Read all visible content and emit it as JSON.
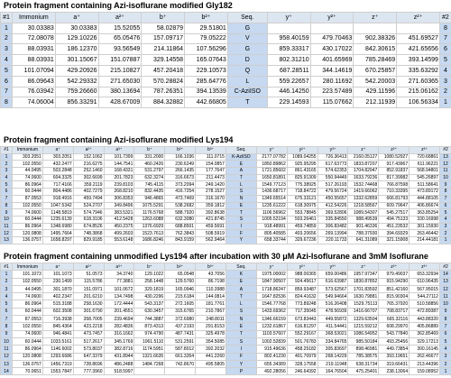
{
  "tables": [
    {
      "title": "Protein fragment containing Azi-isoflurane modified Gly182",
      "headers": [
        "#1",
        "Immonium",
        "a⁺",
        "a²⁺",
        "b⁺",
        "b²⁺",
        "Seq.",
        "y⁺",
        "y²⁺",
        "z⁺",
        "z²⁺",
        "#2"
      ],
      "rows": [
        [
          "1",
          "30.03383",
          "30.03383",
          "15.52055",
          "58.02879",
          "29.51801",
          "G",
          "",
          "",
          "",
          "",
          "8"
        ],
        [
          "2",
          "72.08078",
          "129.10226",
          "65.05476",
          "157.09717",
          "79.05222",
          "V",
          "958.40159",
          "479.70463",
          "902.38326",
          "451.69527",
          "7"
        ],
        [
          "3",
          "88.03931",
          "186.12370",
          "93.56549",
          "214.11864",
          "107.56296",
          "G",
          "859.33317",
          "430.17022",
          "842.30615",
          "421.65656",
          "6"
        ],
        [
          "4",
          "88.03931",
          "301.15067",
          "151.07887",
          "329.14558",
          "165.07643",
          "D",
          "802.31210",
          "401.65969",
          "785.28469",
          "393.14599",
          "5"
        ],
        [
          "5",
          "101.07094",
          "429.20926",
          "215.10827",
          "457.20418",
          "229.10573",
          "Q",
          "687.28511",
          "344.14619",
          "670.25857",
          "335.63292",
          "4"
        ],
        [
          "6",
          "86.09643",
          "542.29332",
          "271.65030",
          "570.28824",
          "285.64776",
          "L",
          "559.22657",
          "280.11692",
          "542.20003",
          "271.60365",
          "3"
        ],
        [
          "7",
          "76.03942",
          "759.26660",
          "380.13694",
          "787.26351",
          "394.13539",
          "C-AziISO",
          "446.14250",
          "223.57489",
          "429.11596",
          "215.06162",
          "2"
        ],
        [
          "8",
          "74.06004",
          "856.33291",
          "428.67009",
          "884.32882",
          "442.66805",
          "T",
          "229.14593",
          "115.07662",
          "212.11939",
          "106.56334",
          "1"
        ]
      ]
    },
    {
      "title": "Protein fragment containing Azi-isoflurane modified Lys194",
      "headers": [
        "#1",
        "Immonium",
        "a⁺",
        "a²⁺",
        "a³⁺",
        "b⁺",
        "b²⁺",
        "b³⁺",
        "Seq.",
        "y⁺",
        "y²⁺",
        "y³⁺",
        "z⁺",
        "z²⁺",
        "z³⁺",
        "#2"
      ],
      "rows": [
        [
          "1",
          "303.2051",
          "303.2051",
          "152.1062",
          "101.7399",
          "331.2000",
          "166.1036",
          "111.0715",
          "K-AziISO",
          "2177.07782",
          "1089.04255",
          "726.36413",
          "2160.05127",
          "1080.52927",
          "720.68861",
          "13"
        ],
        [
          "2",
          "102.0550",
          "432.2477",
          "216.6275",
          "144.7541",
          "460.2426",
          "230.6249",
          "154.0857",
          "E",
          "1850.89862",
          "925.95295",
          "617.63773",
          "1833.87207",
          "917.43967",
          "611.96221",
          "12"
        ],
        [
          "3",
          "44.0495",
          "503.2848",
          "252.1460",
          "168.4331",
          "531.2797",
          "266.1435",
          "177.7647",
          "A",
          "1721.85602",
          "861.43165",
          "574.62353",
          "1704.82947",
          "852.91837",
          "568.94801",
          "11"
        ],
        [
          "4",
          "74.0600",
          "604.3325",
          "302.6699",
          "201.7823",
          "632.3274",
          "316.6673",
          "211.4473",
          "T",
          "1650.81891",
          "825.91309",
          "550.94449",
          "1633.79236",
          "817.39982",
          "545.26897",
          "10"
        ],
        [
          "5",
          "86.0964",
          "717.4166",
          "359.2119",
          "239.8103",
          "745.4115",
          "373.2094",
          "249.1420",
          "L",
          "1549.77123",
          "775.38925",
          "517.26193",
          "1532.74468",
          "766.87598",
          "511.58641",
          "9"
        ],
        [
          "6",
          "60.0444",
          "804.4486",
          "402.7279",
          "268.8210",
          "832.4435",
          "416.7254",
          "278.1527",
          "S",
          "1436.68717",
          "718.84722",
          "479.56724",
          "1419.66062",
          "710.33395",
          "473.89172",
          "8"
        ],
        [
          "7",
          "87.0553",
          "918.4916",
          "459.7494",
          "306.8353",
          "946.4865",
          "473.7469",
          "316.1670",
          "N",
          "1349.65514",
          "675.33121",
          "450.55657",
          "1332.62859",
          "666.81793",
          "444.88105",
          "7"
        ],
        [
          "8",
          "102.0550",
          "1047.5342",
          "524.2707",
          "349.8496",
          "1075.5291",
          "538.2682",
          "359.1812",
          "E",
          "1235.61222",
          "618.30975",
          "412.54226",
          "1218.58567",
          "609.79647",
          "406.86674",
          "6"
        ],
        [
          "9",
          "74.0600",
          "1148.5819",
          "574.7946",
          "383.5321",
          "1176.5768",
          "588.7920",
          "392.8638",
          "T",
          "1106.56962",
          "553.78845",
          "369.52806",
          "1089.54307",
          "545.27517",
          "363.85254",
          "5"
        ],
        [
          "10",
          "60.0444",
          "1235.6139",
          "618.3106",
          "412.5428",
          "1263.6088",
          "632.3080",
          "421.8745",
          "S",
          "1005.52194",
          "503.26461",
          "335.84550",
          "988.49539",
          "494.75133",
          "330.16998",
          "4"
        ],
        [
          "11",
          "86.0964",
          "1348.6980",
          "674.8526",
          "450.2375",
          "1376.6929",
          "688.8501",
          "459.5691",
          "I",
          "918.48991",
          "459.74859",
          "306.83482",
          "901.46336",
          "451.23532",
          "301.15930",
          "3"
        ],
        [
          "12",
          "120.0808",
          "1495.7664",
          "748.3868",
          "499.2603",
          "1523.7613",
          "762.3843",
          "508.5919",
          "F",
          "805.40585",
          "403.20656",
          "269.13994",
          "788.37930",
          "394.69329",
          "263.46442",
          "2"
        ],
        [
          "13",
          "136.0757",
          "1658.8297",
          "829.9185",
          "553.6148",
          "1686.8246",
          "843.9159",
          "562.9464",
          "Y",
          "658.33744",
          "329.67236",
          "220.11733",
          "641.31089",
          "321.15908",
          "214.44181",
          "1"
        ]
      ]
    },
    {
      "title": "Protein fragment containing unmodified Lys194 after incubation with 30 μM Azi-Isoflurane and 3mM Isoflurane",
      "headers": [
        "#1",
        "Immonium",
        "a⁺",
        "a²⁺",
        "a³⁺",
        "b⁺",
        "b²⁺",
        "b³⁺",
        "Seq.",
        "y⁺",
        "y²⁺",
        "y³⁺",
        "z⁺",
        "z²⁺",
        "z³⁺",
        "#2"
      ],
      "rows": [
        [
          "1",
          "101.1073",
          "101.1073",
          "51.0573",
          "34.3740",
          "129.1022",
          "65.0548",
          "43.7056",
          "K",
          "1975.00002",
          "988.00365",
          "659.00486",
          "1957.97347",
          "979.49037",
          "653.32934",
          "14"
        ],
        [
          "2",
          "102.0550",
          "230.1499",
          "115.5786",
          "77.3881",
          "258.1448",
          "129.5760",
          "86.7198",
          "E",
          "1847.90507",
          "924.45617",
          "616.63987",
          "1830.87852",
          "915.94290",
          "610.96435",
          "13"
        ],
        [
          "3",
          "44.0495",
          "301.1870",
          "151.0971",
          "101.0672",
          "329.1819",
          "165.0946",
          "110.3988",
          "A",
          "1718.86247",
          "859.93487",
          "573.62567",
          "1701.83592",
          "851.42160",
          "567.95015",
          "12"
        ],
        [
          "4",
          "74.0600",
          "402.2347",
          "201.6210",
          "134.7498",
          "430.2296",
          "215.6184",
          "144.0814",
          "T",
          "1647.82536",
          "824.41632",
          "549.94664",
          "1630.79881",
          "815.90304",
          "544.27112",
          "11"
        ],
        [
          "5",
          "86.0964",
          "515.3188",
          "258.1630",
          "172.4444",
          "543.3137",
          "272.1605",
          "181.7761",
          "L",
          "1546.77768",
          "773.89248",
          "516.26408",
          "1529.75113",
          "765.37920",
          "510.58856",
          "10"
        ],
        [
          "6",
          "60.0444",
          "602.3508",
          "301.6790",
          "201.4551",
          "630.3457",
          "315.6765",
          "210.7867",
          "S",
          "1433.69362",
          "717.35045",
          "478.56939",
          "1416.66707",
          "708.83717",
          "472.89387",
          "9"
        ],
        [
          "7",
          "87.0553",
          "716.3938",
          "358.7005",
          "239.4694",
          "744.3887",
          "372.6980",
          "248.8011",
          "N",
          "1346.66159",
          "673.83443",
          "449.55872",
          "1329.63504",
          "665.32116",
          "443.88320",
          "8"
        ],
        [
          "8",
          "102.0550",
          "845.4364",
          "423.2218",
          "282.4836",
          "873.4313",
          "437.2193",
          "291.8153",
          "E",
          "1232.61867",
          "616.81297",
          "411.54441",
          "1215.59212",
          "608.29970",
          "405.86889",
          "7"
        ],
        [
          "9",
          "74.0600",
          "946.4841",
          "473.7457",
          "316.1662",
          "974.4790",
          "487.7431",
          "325.4978",
          "T",
          "1103.57607",
          "552.29167",
          "368.53021",
          "1086.54952",
          "543.77840",
          "362.85469",
          "6"
        ],
        [
          "10",
          "60.0444",
          "1033.5161",
          "517.2617",
          "345.1769",
          "1061.5110",
          "531.2591",
          "354.5085",
          "S",
          "1002.52839",
          "501.76783",
          "334.84765",
          "985.50184",
          "493.25456",
          "329.17213",
          "5"
        ],
        [
          "11",
          "86.0964",
          "1146.6002",
          "573.8037",
          "382.8716",
          "1174.5951",
          "587.8012",
          "392.2032",
          "I",
          "915.49636",
          "458.25182",
          "305.83697",
          "898.46981",
          "449.73854",
          "300.16145",
          "4"
        ],
        [
          "12",
          "120.0808",
          "1293.6686",
          "647.3379",
          "431.8944",
          "1321.6635",
          "661.3354",
          "441.2260",
          "F",
          "802.41230",
          "401.70979",
          "268.14229",
          "785.38575",
          "393.19651",
          "262.46677",
          "3"
        ],
        [
          "13",
          "136.0757",
          "1456.7319",
          "728.8696",
          "486.2488",
          "1484.7268",
          "742.8670",
          "495.5805",
          "Y",
          "655.34389",
          "328.17558",
          "219.11948",
          "638.31734",
          "319.66431",
          "213.44396",
          "2"
        ],
        [
          "14",
          "70.0651",
          "1553.7847",
          "777.3960",
          "518.5997",
          "",
          "",
          "",
          "P",
          "492.28056",
          "246.64392",
          "164.76504",
          "475.25401",
          "238.13064",
          "159.08952",
          "1"
        ]
      ]
    }
  ]
}
